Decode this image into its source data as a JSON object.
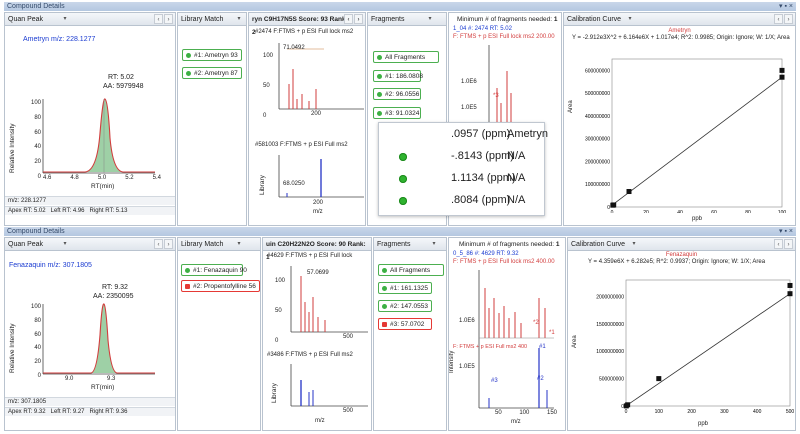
{
  "compound_details_label": "Compound Details",
  "top": {
    "quan_peak": {
      "tab": "Quan Peak",
      "compound": "Ametryn m/z: 228.1277",
      "rt": "RT: 5.02",
      "aa": "AA: 5979948",
      "ylabel": "Relative Intensity",
      "xlabel": "RT(min)",
      "yticks": [
        "100",
        "80",
        "60",
        "40",
        "20",
        "0"
      ],
      "xticks": [
        "4.6",
        "4.8",
        "5.0",
        "5.2",
        "5.4"
      ],
      "mz": "m/z: 228.1277",
      "apex": "Apex RT: 5.02",
      "left": "Left RT: 4.96",
      "right": "Right RT: 5.13"
    },
    "library": {
      "tab": "Library Match",
      "items": [
        "#1: Ametryn 93",
        "#2: Ametryn 87"
      ],
      "status": [
        "green",
        "green"
      ]
    },
    "spectrum": {
      "header": "ryn  C9H17N5S  Score: 93  Rank: 1 of 2",
      "line1": "#2474  F:FTMS + p ESI Full lock ms2",
      "peak1": "71.0492",
      "yticks1": [
        "100",
        "50",
        "0"
      ],
      "xtick1": "200",
      "line2": "#581003  F:FTMS + p ESI Full ms2",
      "peak2": "68.0250",
      "ylabel2": "Library",
      "xtick2": "200",
      "xlabel": "m/z"
    },
    "fragments": {
      "tab": "Fragments",
      "items": [
        "All Fragments",
        "#1: 186.0808",
        "#2: 96.0556",
        "#3: 91.0324"
      ]
    },
    "fragchart": {
      "min_label": "Minimum # of fragments needed:",
      "min_val": "1",
      "info": "1_04  #: 2474  RT: 5.02",
      "filter": "F: FTMS + p ESI Full lock ms2 200.00",
      "ytick": "1.0E6",
      "ytick2": "1.0E5",
      "ann": "*3"
    },
    "popup": {
      "rows": [
        {
          "value": ".0957 (ppm)",
          "name": "Ametryn"
        },
        {
          "value": "-.8143 (ppm)",
          "name": "N/A"
        },
        {
          "value": "1.1134 (ppm)",
          "name": "N/A"
        },
        {
          "value": ".8084 (ppm)",
          "name": "N/A"
        }
      ]
    },
    "calibration": {
      "tab": "Calibration Curve",
      "compound": "Ametryn",
      "equation": "Y = -2.912e3X^2 + 6.164e6X + 1.017e4; R^2: 0.9985; Origin: Ignore; W: 1/X; Area",
      "ylabel": "Area",
      "xlabel": "ppb",
      "yticks": [
        "600000000",
        "500000000",
        "400000000",
        "300000000",
        "200000000",
        "100000000",
        "0"
      ],
      "xticks": [
        "0",
        "20",
        "40",
        "60",
        "80",
        "100"
      ]
    }
  },
  "bottom": {
    "quan_peak": {
      "tab": "Quan Peak",
      "compound": "Fenazaquin m/z: 307.1805",
      "rt": "RT: 9.32",
      "aa": "AA: 2350095",
      "ylabel": "Relative Intensity",
      "xlabel": "RT(min)",
      "yticks": [
        "100",
        "80",
        "60",
        "40",
        "20",
        "0"
      ],
      "xticks": [
        "9.0",
        "9.3"
      ],
      "mz": "m/z: 307.1805",
      "apex": "Apex RT: 9.32",
      "left": "Left RT: 9.27",
      "right": "Right RT: 9.36"
    },
    "library": {
      "tab": "Library Match",
      "items": [
        "#1: Fenazaquin 90",
        "#2: Propentofylline 56"
      ],
      "status": [
        "green",
        "red"
      ]
    },
    "spectrum": {
      "header": "uin  C20H22N2O  Score: 90  Rank: 1",
      "line1": "#4629  F:FTMS + p ESI Full lock",
      "peak1": "57.0699",
      "yticks1": [
        "100",
        "50",
        "0"
      ],
      "xtick1": "500",
      "line2": "#3486  F:FTMS + p ESI Full ms2",
      "ylabel2": "Library",
      "xtick2": "500",
      "xlabel": "m/z"
    },
    "fragments": {
      "tab": "Fragments",
      "items": [
        "All Fragments",
        "#1: 161.1325",
        "#2: 147.0553",
        "#3: 57.0702"
      ],
      "status": [
        "green",
        "green",
        "green",
        "red"
      ]
    },
    "fragchart": {
      "min_label": "Minimum # of fragments needed:",
      "min_val": "1",
      "info": "0_5_86  #: 4629  RT: 9.32",
      "filter": "F: FTMS + p ESI Full lock ms2 400.00",
      "ytick": "1.0E6",
      "ytick2": "1.0E5",
      "ylabel": "Intensity",
      "filter2": "F: FTMS + p ESI Full ms2 400",
      "ann1": "*2",
      "ann2": "*1",
      "ann3": "#1",
      "ann4": "#3",
      "ann5": "#2",
      "xticks": [
        "50",
        "100",
        "150"
      ],
      "xlabel": "m/z"
    },
    "calibration": {
      "tab": "Calibration Curve",
      "compound": "Fenazaquin",
      "equation": "Y = 4.359e6X + 6.282e5; R^2: 0.9937; Origin: Ignore; W: 1/X; Area",
      "ylabel": "Area",
      "xlabel": "ppb",
      "yticks": [
        "2000000000",
        "1500000000",
        "1000000000",
        "500000000",
        "0"
      ],
      "xticks": [
        "0",
        "100",
        "200",
        "300",
        "400",
        "500"
      ]
    }
  },
  "chart_data": [
    {
      "type": "scatter",
      "title": "Ametryn",
      "xlabel": "ppb",
      "ylabel": "Area",
      "x": [
        0.5,
        1,
        10,
        100,
        100
      ],
      "y": [
        8000000,
        9000000,
        68000000,
        570000000,
        600000000
      ],
      "xlim": [
        0,
        100
      ],
      "ylim": [
        0,
        650000000
      ]
    },
    {
      "type": "scatter",
      "title": "Fenazaquin",
      "xlabel": "ppb",
      "ylabel": "Area",
      "x": [
        1,
        5,
        100,
        500,
        500
      ],
      "y": [
        2000000,
        22000000,
        500000000,
        2050000000,
        2200000000
      ],
      "xlim": [
        0,
        500
      ],
      "ylim": [
        0,
        2300000000
      ]
    }
  ],
  "colors": {
    "accent": "#344a6a",
    "green": "#3cb043",
    "red": "#e53935",
    "peak": "#d23c3c",
    "blue": "#2433c7"
  }
}
